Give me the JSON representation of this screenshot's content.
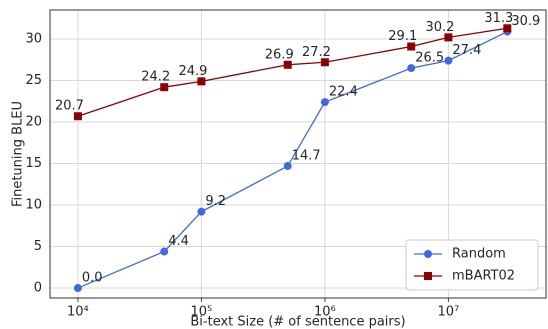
{
  "chart_data": {
    "type": "line",
    "x_label": "Bi-text Size (# of sentence pairs)",
    "y_label": "Finetuning BLEU",
    "x": [
      10000,
      50000,
      100000,
      500000,
      1000000,
      5000000,
      10000000,
      30000000
    ],
    "series": [
      {
        "name": "Random",
        "color": "#4169e1",
        "marker": "circle",
        "values": [
          0,
          4.4,
          9.2,
          14.7,
          22.4,
          26.5,
          27.4,
          30.9
        ],
        "value_labels": [
          "0.0",
          "4.4",
          "9.2",
          "14.7",
          "22.4",
          "26.5",
          "27.4",
          "30.9"
        ]
      },
      {
        "name": "mBART02",
        "color": "#8b0000",
        "marker": "square",
        "values": [
          20.7,
          24.2,
          24.9,
          26.9,
          27.2,
          29.1,
          30.2,
          31.3
        ]
      }
    ],
    "xscale": "log",
    "xlim": [
      5943,
      61700000
    ],
    "xticks": [
      {
        "value": 10000,
        "label": "10⁴"
      },
      {
        "value": 100000,
        "label": "10⁵"
      },
      {
        "value": 1000000,
        "label": "10⁶"
      },
      {
        "value": 10000000,
        "label": "10⁷"
      }
    ],
    "ylim": [
      -1.2,
      33.5
    ],
    "yticks": [
      0,
      5,
      10,
      15,
      20,
      25,
      30
    ],
    "grid": true,
    "legend": "lower right"
  }
}
